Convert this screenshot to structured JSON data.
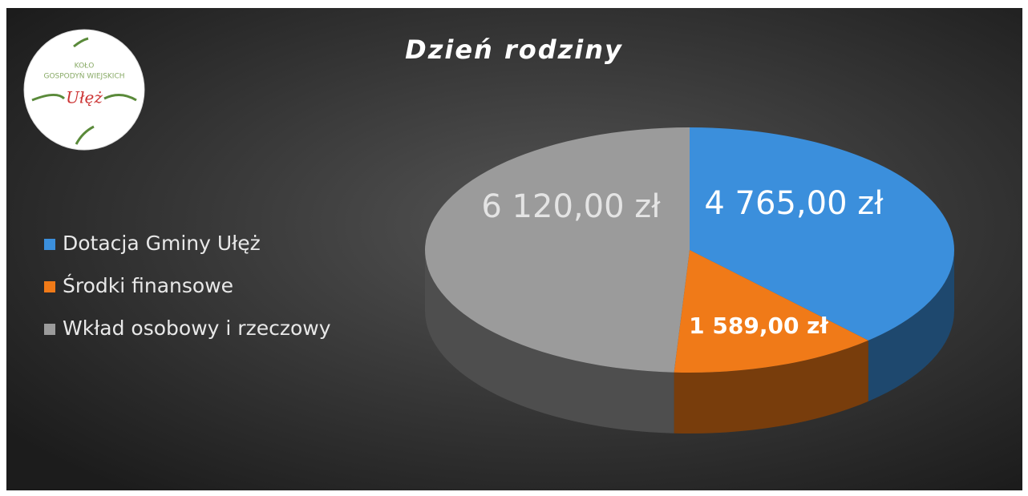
{
  "chart_data": {
    "type": "pie3d",
    "title": "Dzień rodziny",
    "categories": [
      "Dotacja Gminy Ułęż",
      "Środki finansowe",
      "Wkład osobowy i rzeczowy"
    ],
    "values": [
      4765,
      1589,
      6120
    ],
    "value_labels": [
      "4 765,00 zł",
      "1 589,00 zł",
      "6 120,00 zł"
    ],
    "colors": [
      "#3b8fdc",
      "#f07a18",
      "#9b9b9b"
    ],
    "legend": "left"
  },
  "logo": {
    "lines": [
      "KOŁO",
      "GOSPODYŃ WIEJSKICH",
      "Ułęż"
    ]
  }
}
